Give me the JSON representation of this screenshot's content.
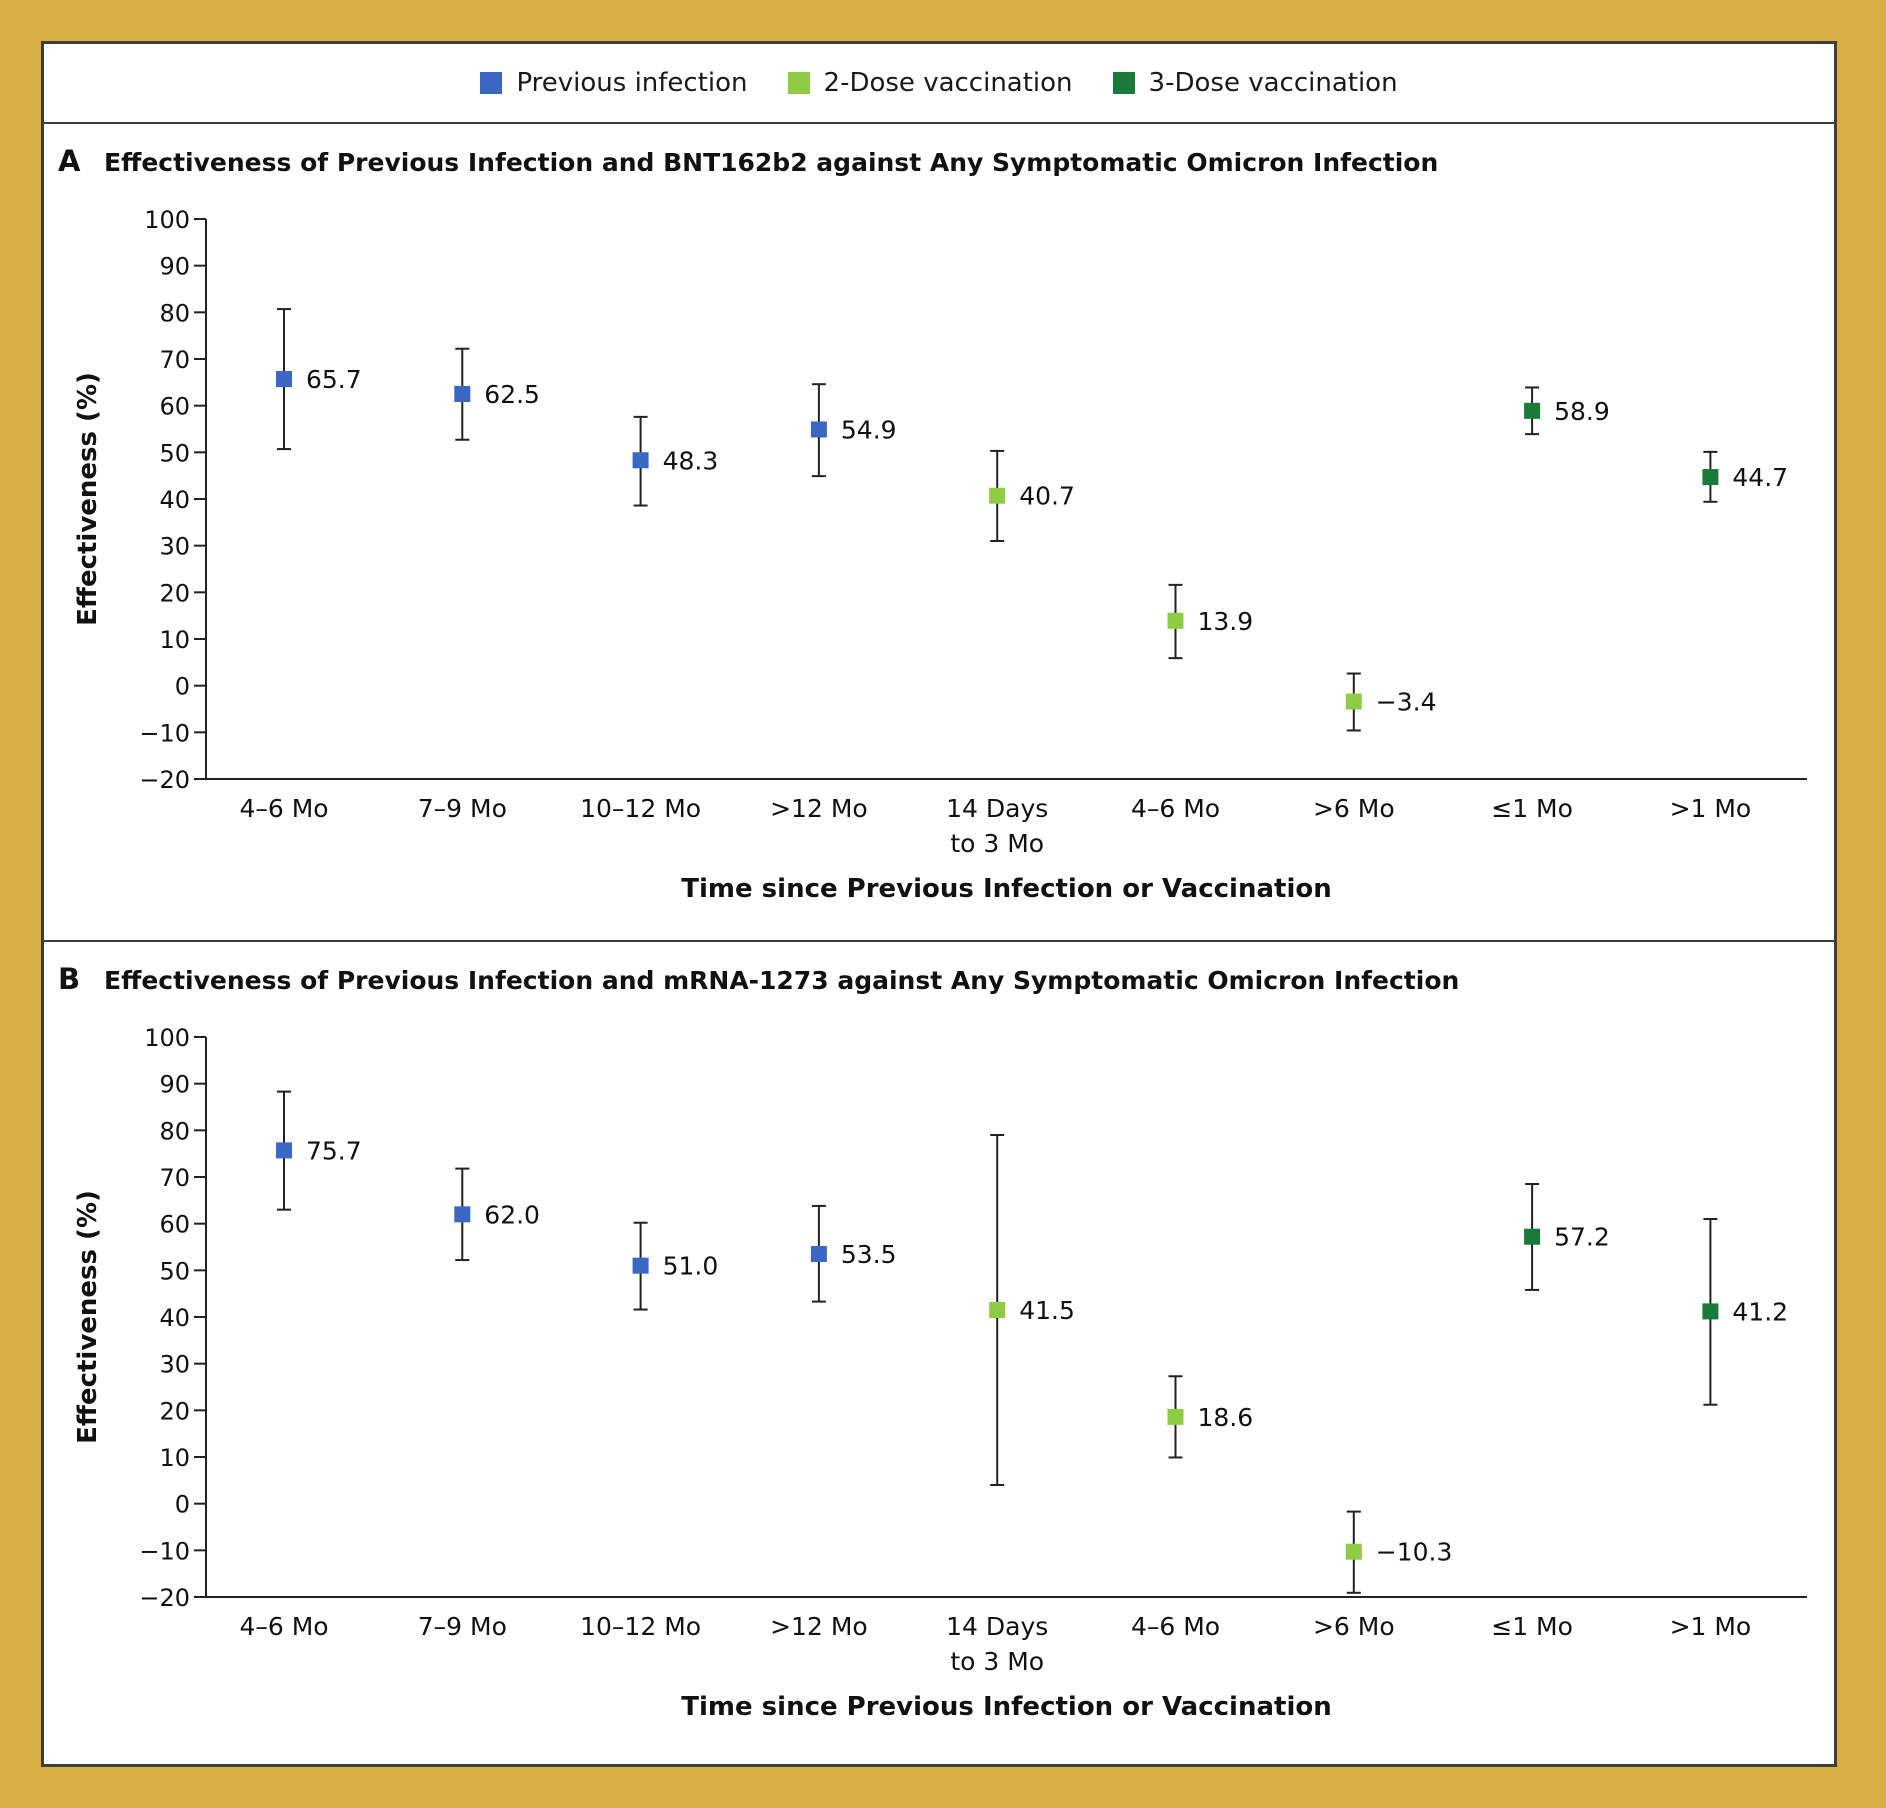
{
  "legend": [
    {
      "label": "Previous infection",
      "color": "#3a66c4"
    },
    {
      "label": "2-Dose vaccination",
      "color": "#8fcc45"
    },
    {
      "label": "3-Dose vaccination",
      "color": "#1a7a3a"
    }
  ],
  "chart_data": [
    {
      "type": "scatter",
      "panel_letter": "A",
      "title": "Effectiveness of Previous Infection and BNT162b2 against Any Symptomatic Omicron Infection",
      "ylabel": "Effectiveness (%)",
      "xlabel": "Time since Previous Infection or Vaccination",
      "ylim": [
        -20,
        100
      ],
      "yticks": [
        100,
        90,
        80,
        70,
        60,
        50,
        40,
        30,
        20,
        10,
        0,
        -10,
        -20
      ],
      "ytick_labels": [
        "100",
        "90",
        "80",
        "70",
        "60",
        "50",
        "40",
        "30",
        "20",
        "10",
        "0",
        "−10",
        "−20"
      ],
      "categories": [
        [
          "4–6 Mo"
        ],
        [
          "7–9 Mo"
        ],
        [
          "10–12 Mo"
        ],
        [
          ">12 Mo"
        ],
        [
          "14 Days",
          "to 3 Mo"
        ],
        [
          "4–6 Mo"
        ],
        [
          ">6 Mo"
        ],
        [
          "≤1 Mo"
        ],
        [
          ">1 Mo"
        ]
      ],
      "points": [
        {
          "value": 65.7,
          "low": 50.7,
          "high": 80.7,
          "label": "65.7",
          "group": 0
        },
        {
          "value": 62.5,
          "low": 52.7,
          "high": 72.2,
          "label": "62.5",
          "group": 0
        },
        {
          "value": 48.3,
          "low": 38.6,
          "high": 57.6,
          "label": "48.3",
          "group": 0
        },
        {
          "value": 54.9,
          "low": 44.9,
          "high": 64.6,
          "label": "54.9",
          "group": 0
        },
        {
          "value": 40.7,
          "low": 31.0,
          "high": 50.3,
          "label": "40.7",
          "group": 1
        },
        {
          "value": 13.9,
          "low": 5.9,
          "high": 21.6,
          "label": "13.9",
          "group": 1
        },
        {
          "value": -3.4,
          "low": -9.6,
          "high": 2.6,
          "label": "−3.4",
          "group": 1
        },
        {
          "value": 58.9,
          "low": 53.9,
          "high": 63.9,
          "label": "58.9",
          "group": 2
        },
        {
          "value": 44.7,
          "low": 39.4,
          "high": 50.1,
          "label": "44.7",
          "group": 2
        }
      ]
    },
    {
      "type": "scatter",
      "panel_letter": "B",
      "title": "Effectiveness of Previous Infection and mRNA-1273 against Any Symptomatic Omicron Infection",
      "ylabel": "Effectiveness (%)",
      "xlabel": "Time since Previous Infection or Vaccination",
      "ylim": [
        -20,
        100
      ],
      "yticks": [
        100,
        90,
        80,
        70,
        60,
        50,
        40,
        30,
        20,
        10,
        0,
        -10,
        -20
      ],
      "ytick_labels": [
        "100",
        "90",
        "80",
        "70",
        "60",
        "50",
        "40",
        "30",
        "20",
        "10",
        "0",
        "−10",
        "−20"
      ],
      "categories": [
        [
          "4–6 Mo"
        ],
        [
          "7–9 Mo"
        ],
        [
          "10–12 Mo"
        ],
        [
          ">12 Mo"
        ],
        [
          "14 Days",
          "to 3 Mo"
        ],
        [
          "4–6 Mo"
        ],
        [
          ">6 Mo"
        ],
        [
          "≤1 Mo"
        ],
        [
          ">1 Mo"
        ]
      ],
      "points": [
        {
          "value": 75.7,
          "low": 63.0,
          "high": 88.3,
          "label": "75.7",
          "group": 0
        },
        {
          "value": 62.0,
          "low": 52.2,
          "high": 71.8,
          "label": "62.0",
          "group": 0
        },
        {
          "value": 51.0,
          "low": 41.6,
          "high": 60.2,
          "label": "51.0",
          "group": 0
        },
        {
          "value": 53.5,
          "low": 43.3,
          "high": 63.8,
          "label": "53.5",
          "group": 0
        },
        {
          "value": 41.5,
          "low": 4.0,
          "high": 79.0,
          "label": "41.5",
          "group": 1
        },
        {
          "value": 18.6,
          "low": 9.9,
          "high": 27.3,
          "label": "18.6",
          "group": 1
        },
        {
          "value": -10.3,
          "low": -19.1,
          "high": -1.7,
          "label": "−10.3",
          "group": 1
        },
        {
          "value": 57.2,
          "low": 45.8,
          "high": 68.5,
          "label": "57.2",
          "group": 2
        },
        {
          "value": 41.2,
          "low": 21.2,
          "high": 61.0,
          "label": "41.2",
          "group": 2
        }
      ]
    }
  ]
}
